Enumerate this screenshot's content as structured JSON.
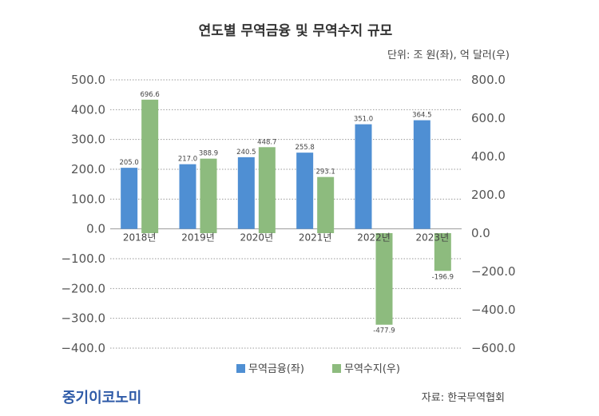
{
  "chart_data": {
    "type": "bar",
    "title": "연도별 무역금융 및 무역수지 규모",
    "unit_note": "단위: 조 원(좌), 억 달러(우)",
    "categories": [
      "2018년",
      "2019년",
      "2020년",
      "2021년",
      "2022년",
      "2023년"
    ],
    "series": [
      {
        "name": "무역금융(좌)",
        "axis": "left",
        "color": "#4f8fd3",
        "values": [
          205.0,
          217.0,
          240.5,
          255.8,
          351.0,
          364.5
        ],
        "labels": [
          "205.0",
          "217.0",
          "240.5",
          "255.8",
          "351.0",
          "364.5"
        ]
      },
      {
        "name": "무역수지(우)",
        "axis": "right",
        "color": "#8dbb7e",
        "values": [
          696.6,
          388.9,
          448.7,
          293.1,
          -477.9,
          -196.9
        ],
        "labels": [
          "696.6",
          "388.9",
          "448.7",
          "293.1",
          "-477.9",
          "-196.9"
        ]
      }
    ],
    "y_left": {
      "range": [
        -400,
        500
      ],
      "ticks": [
        500,
        400,
        300,
        200,
        100,
        0,
        -100,
        -200,
        -300,
        -400
      ],
      "tick_labels": [
        "500.0",
        "400.0",
        "300.0",
        "200.0",
        "100.0",
        "0.0",
        "−100.0",
        "−200.0",
        "−300.0",
        "−400.0"
      ]
    },
    "y_right": {
      "range": [
        -600,
        800
      ],
      "ticks": [
        800,
        600,
        400,
        200,
        0,
        -200,
        -400,
        -600
      ],
      "tick_labels": [
        "800.0",
        "600.0",
        "400.0",
        "200.0",
        "0.0",
        "−200.0",
        "−400.0",
        "−600.0"
      ]
    },
    "grid": true,
    "legend_position": "bottom"
  },
  "footer": {
    "logo": "중기이코노미",
    "source": "자료: 한국무역협회"
  }
}
